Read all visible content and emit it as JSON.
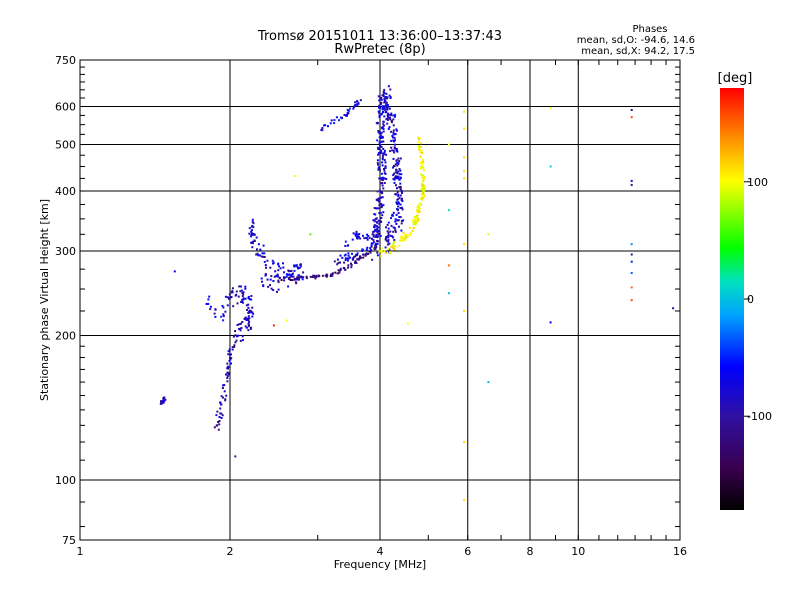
{
  "chart_data": {
    "type": "scatter",
    "title": "Tromsø 20151011 13:36:00–13:37:43",
    "subtitle": "RwPretec (8p)",
    "xlabel": "Frequency [MHz]",
    "ylabel": "Stationary phase Virtual Height [km]",
    "x_scale": "log",
    "y_scale": "log",
    "xlim": [
      1,
      16
    ],
    "ylim": [
      75,
      750
    ],
    "x_ticks": [
      {
        "v": 1,
        "label": "1"
      },
      {
        "v": 2,
        "label": "2"
      },
      {
        "v": 4,
        "label": "4"
      },
      {
        "v": 6,
        "label": "6"
      },
      {
        "v": 8,
        "label": "8"
      },
      {
        "v": 10,
        "label": "10"
      },
      {
        "v": 16,
        "label": "16"
      }
    ],
    "y_ticks": [
      {
        "v": 75,
        "label": "75"
      },
      {
        "v": 100,
        "label": "100"
      },
      {
        "v": 200,
        "label": "200"
      },
      {
        "v": 300,
        "label": "300"
      },
      {
        "v": 400,
        "label": "400"
      },
      {
        "v": 500,
        "label": "500"
      },
      {
        "v": 600,
        "label": "600"
      },
      {
        "v": 750,
        "label": "750"
      }
    ],
    "grid": true,
    "colorbar": {
      "label": "[deg]",
      "range": [
        -180,
        180
      ],
      "ticks": [
        {
          "v": 100,
          "label": "100"
        },
        {
          "v": 0,
          "label": "0"
        },
        {
          "v": -100,
          "label": "-100"
        }
      ]
    },
    "stats": {
      "heading": "Phases",
      "o_mode": "mean, sd,O: -94.6, 14.6",
      "x_mode": "mean, sd,X:  94.2, 17.5"
    },
    "traces": [
      {
        "phase": -118,
        "n": 140,
        "spread_x": 0.012,
        "spread_h": 0.05,
        "points": [
          [
            1.88,
            130
          ],
          [
            1.92,
            140
          ],
          [
            1.97,
            160
          ],
          [
            2.0,
            180
          ],
          [
            2.05,
            195
          ],
          [
            2.1,
            205
          ],
          [
            2.18,
            215
          ],
          [
            2.2,
            230
          ],
          [
            2.1,
            245
          ],
          [
            2.0,
            235
          ]
        ]
      },
      {
        "phase": -112,
        "n": 120,
        "spread_x": 0.012,
        "spread_h": 0.04,
        "points": [
          [
            2.2,
            340
          ],
          [
            2.25,
            310
          ],
          [
            2.35,
            290
          ],
          [
            2.45,
            275
          ],
          [
            2.6,
            270
          ],
          [
            2.8,
            272
          ],
          [
            2.6,
            262
          ],
          [
            2.45,
            255
          ],
          [
            2.3,
            265
          ]
        ]
      },
      {
        "phase": -135,
        "n": 90,
        "spread_x": 0.004,
        "spread_h": 0.008,
        "points": [
          [
            2.5,
            262
          ],
          [
            2.9,
            264
          ],
          [
            3.2,
            268
          ],
          [
            3.5,
            280
          ],
          [
            3.7,
            293
          ],
          [
            3.85,
            300
          ],
          [
            3.95,
            306
          ]
        ]
      },
      {
        "phase": -110,
        "n": 70,
        "spread_x": 0.01,
        "spread_h": 0.02,
        "points": [
          [
            3.2,
            283
          ],
          [
            3.5,
            292
          ],
          [
            3.8,
            300
          ],
          [
            3.9,
            320
          ],
          [
            3.6,
            325
          ],
          [
            3.4,
            310
          ]
        ]
      },
      {
        "phase": -112,
        "n": 420,
        "spread_x": 0.018,
        "spread_h": 0.06,
        "points": [
          [
            3.9,
            300
          ],
          [
            4.0,
            380
          ],
          [
            4.05,
            450
          ],
          [
            4.0,
            520
          ],
          [
            4.05,
            600
          ],
          [
            4.1,
            640
          ],
          [
            4.2,
            560
          ],
          [
            4.3,
            480
          ],
          [
            4.35,
            420
          ],
          [
            4.4,
            360
          ],
          [
            4.2,
            330
          ],
          [
            4.1,
            310
          ]
        ]
      },
      {
        "phase": -108,
        "n": 40,
        "spread_x": 0.006,
        "spread_h": 0.01,
        "points": [
          [
            3.05,
            540
          ],
          [
            3.2,
            555
          ],
          [
            3.4,
            575
          ],
          [
            3.55,
            600
          ],
          [
            3.65,
            620
          ]
        ]
      },
      {
        "phase": 100,
        "n": 150,
        "spread_x": 0.008,
        "spread_h": 0.02,
        "points": [
          [
            4.0,
            298
          ],
          [
            4.2,
            303
          ],
          [
            4.4,
            315
          ],
          [
            4.6,
            330
          ],
          [
            4.75,
            355
          ],
          [
            4.85,
            385
          ],
          [
            4.9,
            410
          ],
          [
            4.85,
            460
          ],
          [
            4.8,
            520
          ]
        ]
      },
      {
        "phase": -110,
        "n": 25,
        "spread_x": 0.01,
        "spread_h": 0.03,
        "points": [
          [
            1.8,
            240
          ],
          [
            1.85,
            225
          ],
          [
            1.9,
            210
          ],
          [
            2.0,
            245
          ],
          [
            2.05,
            250
          ]
        ]
      },
      {
        "phase": -115,
        "n": 14,
        "spread_x": 0.003,
        "spread_h": 0.01,
        "points": [
          [
            1.45,
            145
          ],
          [
            1.47,
            146
          ],
          [
            1.48,
            148
          ]
        ]
      }
    ],
    "isolated": [
      {
        "f": 1.55,
        "h": 272,
        "phase": -105
      },
      {
        "f": 2.05,
        "h": 112,
        "phase": -120
      },
      {
        "f": 2.6,
        "h": 215,
        "phase": 100
      },
      {
        "f": 2.7,
        "h": 430,
        "phase": 100
      },
      {
        "f": 2.9,
        "h": 325,
        "phase": 40
      },
      {
        "f": 2.45,
        "h": 210,
        "phase": 170
      },
      {
        "f": 4.55,
        "h": 212,
        "phase": 100
      },
      {
        "f": 5.5,
        "h": 365,
        "phase": -20
      },
      {
        "f": 5.5,
        "h": 280,
        "phase": 150
      },
      {
        "f": 5.5,
        "h": 245,
        "phase": -40
      },
      {
        "f": 5.5,
        "h": 500,
        "phase": 100
      },
      {
        "f": 5.9,
        "h": 585,
        "phase": 110
      },
      {
        "f": 5.9,
        "h": 540,
        "phase": 110
      },
      {
        "f": 5.9,
        "h": 470,
        "phase": 110
      },
      {
        "f": 5.9,
        "h": 440,
        "phase": 110
      },
      {
        "f": 5.9,
        "h": 425,
        "phase": 110
      },
      {
        "f": 5.9,
        "h": 310,
        "phase": 110
      },
      {
        "f": 5.9,
        "h": 225,
        "phase": 110
      },
      {
        "f": 5.9,
        "h": 120,
        "phase": 110
      },
      {
        "f": 5.9,
        "h": 91,
        "phase": 110
      },
      {
        "f": 6.6,
        "h": 325,
        "phase": 90
      },
      {
        "f": 6.6,
        "h": 160,
        "phase": -40
      },
      {
        "f": 8.8,
        "h": 595,
        "phase": 100
      },
      {
        "f": 8.8,
        "h": 450,
        "phase": -30
      },
      {
        "f": 8.8,
        "h": 213,
        "phase": -100
      },
      {
        "f": 12.8,
        "h": 590,
        "phase": -130
      },
      {
        "f": 12.8,
        "h": 570,
        "phase": 160
      },
      {
        "f": 12.8,
        "h": 420,
        "phase": -110
      },
      {
        "f": 12.8,
        "h": 412,
        "phase": -130
      },
      {
        "f": 12.8,
        "h": 310,
        "phase": -60
      },
      {
        "f": 12.8,
        "h": 295,
        "phase": -120
      },
      {
        "f": 12.8,
        "h": 285,
        "phase": -90
      },
      {
        "f": 12.8,
        "h": 270,
        "phase": -70
      },
      {
        "f": 12.8,
        "h": 252,
        "phase": 150
      },
      {
        "f": 12.8,
        "h": 237,
        "phase": 160
      },
      {
        "f": 15.5,
        "h": 228,
        "phase": -120
      }
    ]
  }
}
